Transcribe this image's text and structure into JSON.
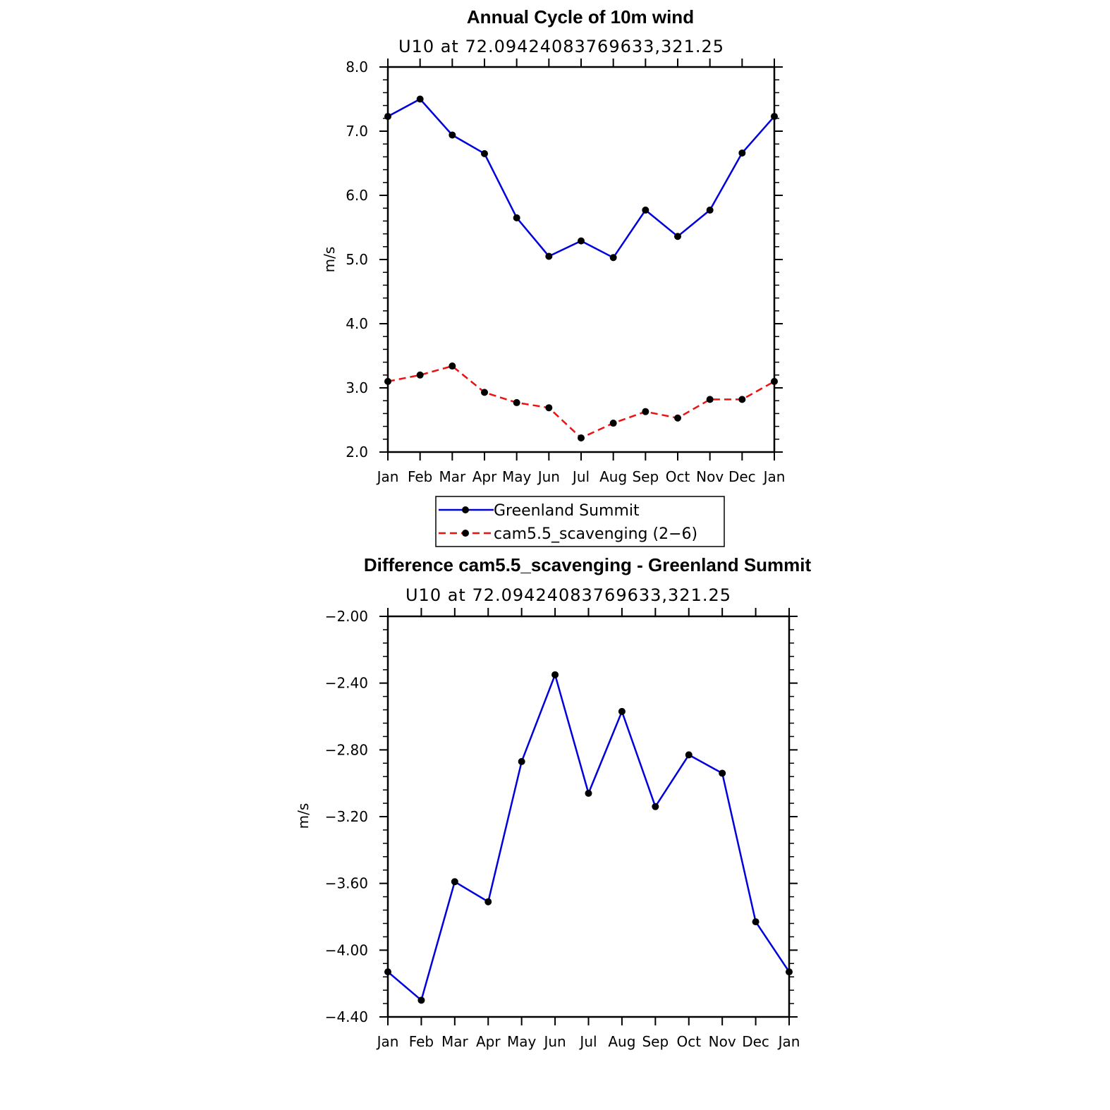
{
  "chart_data": [
    {
      "type": "line",
      "title": "Annual Cycle of 10m wind",
      "subtitle": "U10  at  72.09424083769633,321.25",
      "xlabel": "",
      "ylabel": "m/s",
      "ylim": [
        2.0,
        8.0
      ],
      "yticks": [
        2.0,
        3.0,
        4.0,
        5.0,
        6.0,
        7.0,
        8.0
      ],
      "ytick_labels": [
        "2.0",
        "3.0",
        "4.0",
        "5.0",
        "6.0",
        "7.0",
        "8.0"
      ],
      "yminor_step": 0.2,
      "categories": [
        "Jan",
        "Feb",
        "Mar",
        "Apr",
        "May",
        "Jun",
        "Jul",
        "Aug",
        "Sep",
        "Oct",
        "Nov",
        "Dec",
        "Jan"
      ],
      "series": [
        {
          "name": "Greenland Summit",
          "color": "#0000dd",
          "dash": "solid",
          "values": [
            7.23,
            7.5,
            6.94,
            6.65,
            5.65,
            5.05,
            5.29,
            5.03,
            5.77,
            5.36,
            5.77,
            6.66,
            7.23
          ]
        },
        {
          "name": "cam5.5_scavenging (2−6)",
          "color": "#ee1111",
          "dash": "dashed",
          "values": [
            3.1,
            3.2,
            3.34,
            2.93,
            2.77,
            2.69,
            2.22,
            2.45,
            2.63,
            2.53,
            2.82,
            2.82,
            3.1
          ]
        }
      ],
      "legend_position": "below"
    },
    {
      "type": "line",
      "title": "Difference cam5.5_scavenging - Greenland Summit",
      "subtitle": "U10  at  72.09424083769633,321.25",
      "xlabel": "",
      "ylabel": "m/s",
      "ylim": [
        -4.4,
        -2.0
      ],
      "yticks": [
        -4.4,
        -4.0,
        -3.6,
        -3.2,
        -2.8,
        -2.4,
        -2.0
      ],
      "ytick_labels": [
        "−4.40",
        "−4.00",
        "−3.60",
        "−3.20",
        "−2.80",
        "−2.40",
        "−2.00"
      ],
      "yminor_step": 0.08,
      "categories": [
        "Jan",
        "Feb",
        "Mar",
        "Apr",
        "May",
        "Jun",
        "Jul",
        "Aug",
        "Sep",
        "Oct",
        "Nov",
        "Dec",
        "Jan"
      ],
      "series": [
        {
          "name": "Difference",
          "color": "#0000dd",
          "dash": "solid",
          "values": [
            -4.13,
            -4.3,
            -3.59,
            -3.71,
            -2.87,
            -2.35,
            -3.06,
            -2.57,
            -3.14,
            -2.83,
            -2.94,
            -3.83,
            -4.13
          ]
        }
      ]
    }
  ]
}
